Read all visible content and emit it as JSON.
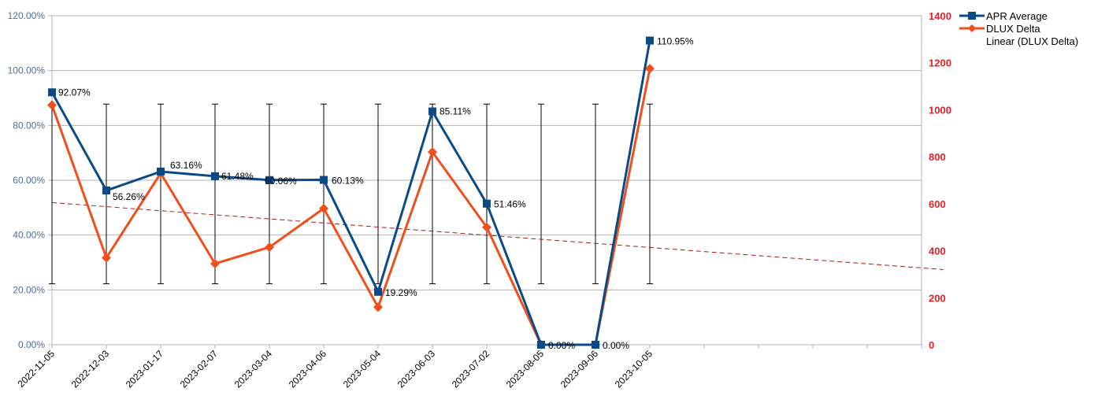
{
  "chart_data": {
    "type": "line",
    "categories": [
      "2022-11-05",
      "2022-12-03",
      "2023-01-17",
      "2023-02-07",
      "2023-03-04",
      "2023-04-06",
      "2023-05-04",
      "2023-06-03",
      "2023-07-02",
      "2023-08-05",
      "2023-09-06",
      "2023-10-05"
    ],
    "y_left": {
      "min": 0,
      "max": 1.2,
      "step": 0.2,
      "tick_labels": [
        "0.00%",
        "20.00%",
        "40.00%",
        "60.00%",
        "80.00%",
        "100.00%",
        "120.00%"
      ]
    },
    "y_right": {
      "min": 0,
      "max": 1400,
      "step": 200,
      "tick_labels": [
        "0",
        "200",
        "400",
        "600",
        "800",
        "1000",
        "1200",
        "1400"
      ]
    },
    "grid": true,
    "legend_position": "top-right",
    "series": [
      {
        "name": "APR Average",
        "axis": "left",
        "color": "#0a4a86",
        "marker": "square",
        "values": [
          0.9207,
          0.5626,
          0.6316,
          0.6148,
          0.6006,
          0.6013,
          0.1929,
          0.8511,
          0.5146,
          0.0,
          0.0,
          1.1095
        ],
        "labels": [
          "92.07%",
          "56.26%",
          "63.16%",
          "61.48%",
          "60.06%",
          "60.13%",
          "19.29%",
          "85.11%",
          "51.46%",
          "0.00%",
          "0.00%",
          "110.95%"
        ],
        "error_bars": {
          "low": 0.2223,
          "high": 0.8778
        }
      },
      {
        "name": "DLUX Delta",
        "axis": "right",
        "color": "#f04e1c",
        "marker": "diamond",
        "values": [
          1020,
          370,
          730,
          345,
          415,
          580,
          160,
          820,
          500,
          0,
          0,
          1175
        ]
      },
      {
        "name": "Linear (DLUX Delta)",
        "axis": "right",
        "color": "#a31a1a",
        "style": "dashed",
        "trendline": {
          "start": 605,
          "end": 320,
          "x_end": 16.4
        }
      }
    ]
  }
}
